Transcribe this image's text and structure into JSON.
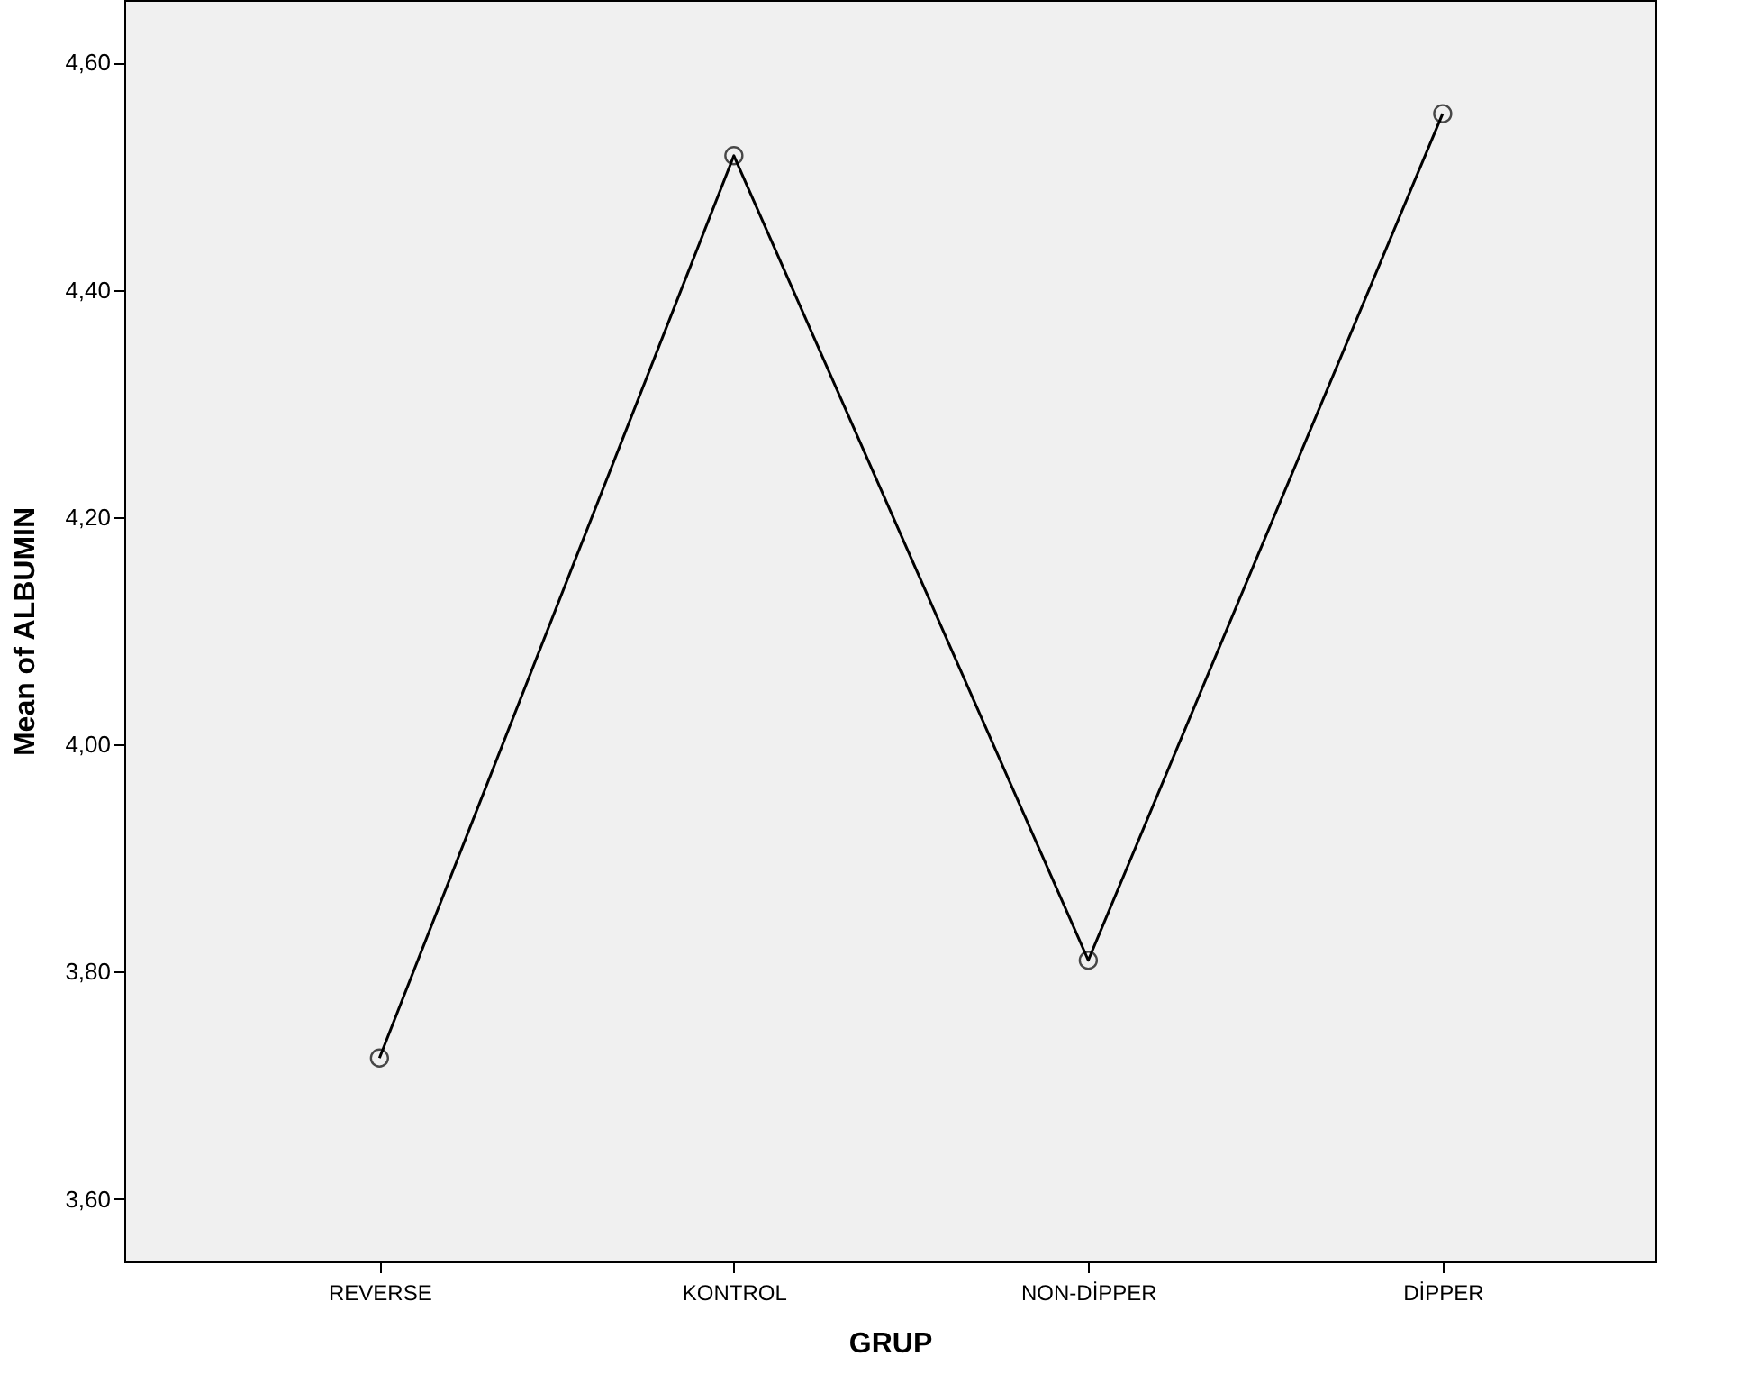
{
  "chart_data": {
    "type": "line",
    "xlabel": "GRUP",
    "ylabel": "Mean of ALBUMIN",
    "categories": [
      "REVERSE",
      "KONTROL",
      "NON-DİPPER",
      "DİPPER"
    ],
    "series": [
      {
        "color": "#000000",
        "values": [
          3.724,
          4.518,
          3.81,
          4.555
        ]
      }
    ],
    "ylim": [
      3.545,
      4.655
    ],
    "yticks": [
      {
        "value": 3.6,
        "label": "3,60"
      },
      {
        "value": 3.8,
        "label": "3,80"
      },
      {
        "value": 4.0,
        "label": "4,00"
      },
      {
        "value": 4.2,
        "label": "4,20"
      },
      {
        "value": 4.4,
        "label": "4,40"
      },
      {
        "value": 4.6,
        "label": "4,60"
      }
    ],
    "marker": "circle",
    "line_style": "solid",
    "grid": false,
    "legend": false
  }
}
